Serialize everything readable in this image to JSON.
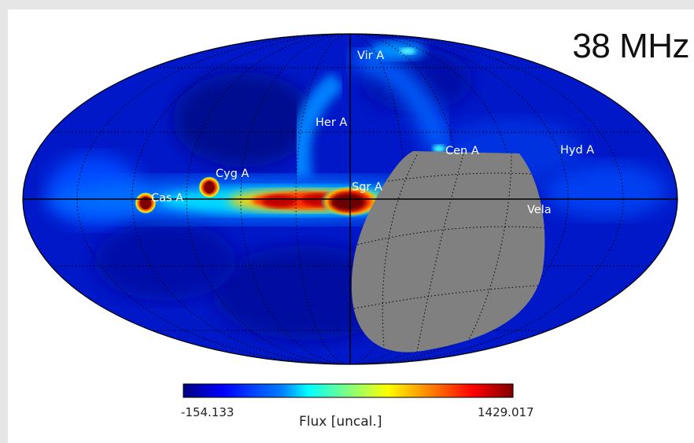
{
  "map": {
    "frequency_label": "38 MHz",
    "projection": "mollweide",
    "colormap": "jet",
    "sources": [
      {
        "name": "Vir A"
      },
      {
        "name": "Her A"
      },
      {
        "name": "Cen A"
      },
      {
        "name": "Hyd A"
      },
      {
        "name": "Cyg A"
      },
      {
        "name": "Cas A"
      },
      {
        "name": "Sgr A"
      },
      {
        "name": "Vela"
      }
    ]
  },
  "colorbar": {
    "min": "-154.133",
    "max": "1429.017",
    "label": "Flux [uncal.]",
    "colors": [
      "#00007f",
      "#0000ff",
      "#0080ff",
      "#00ffff",
      "#80ff80",
      "#ffff00",
      "#ff8000",
      "#ff0000",
      "#7f0000"
    ]
  },
  "masked_color": "#808080"
}
